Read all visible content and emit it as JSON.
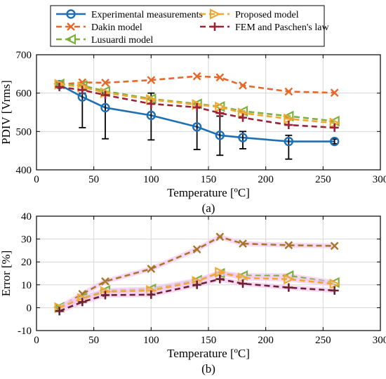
{
  "chart_data": [
    {
      "type": "line",
      "panel_label": "(a)",
      "xlabel": "Temperature [ºC]",
      "ylabel": "PDIV [Vrms]",
      "xlim": [
        0,
        300
      ],
      "ylim": [
        400,
        700
      ],
      "xticks": [
        0,
        50,
        100,
        150,
        200,
        250,
        300
      ],
      "yticks": [
        400,
        500,
        600,
        700
      ],
      "grid": true,
      "legend_position": "top, outside plot area (two columns)",
      "series": [
        {
          "name": "Experimental measurements",
          "color": "#1f6fb4",
          "marker": "circle",
          "x": [
            20,
            40,
            60,
            100,
            140,
            160,
            180,
            220,
            260
          ],
          "y": [
            622,
            590,
            562,
            542,
            512,
            490,
            484,
            474,
            474
          ],
          "error_lower": [
            622,
            510,
            481,
            478,
            453,
            438,
            455,
            428,
            468
          ],
          "error_upper": [
            628,
            600,
            600,
            600,
            570,
            540,
            500,
            490,
            480
          ]
        },
        {
          "name": "Dakin model",
          "color": "#e8672a",
          "marker": "x",
          "x": [
            20,
            40,
            60,
            100,
            140,
            160,
            180,
            220,
            260
          ],
          "y": [
            622,
            628,
            627,
            634,
            644,
            641,
            620,
            604,
            601
          ]
        },
        {
          "name": "Lusuardi model",
          "color": "#7db041",
          "marker": "triangle-left",
          "x": [
            20,
            40,
            60,
            100,
            140,
            160,
            180,
            220,
            260
          ],
          "y": [
            624,
            620,
            605,
            585,
            572,
            565,
            553,
            540,
            527
          ]
        },
        {
          "name": "Proposed model",
          "color": "#f0a830",
          "marker": "triangle-right",
          "x": [
            20,
            40,
            60,
            100,
            140,
            160,
            180,
            220,
            260
          ],
          "y": [
            623,
            616,
            601,
            583,
            570,
            564,
            548,
            533,
            522
          ]
        },
        {
          "name": "FEM and Paschen's law",
          "color": "#9c2236",
          "marker": "plus",
          "x": [
            20,
            40,
            60,
            100,
            140,
            160,
            180,
            220,
            260
          ],
          "y": [
            616,
            608,
            595,
            572,
            563,
            548,
            536,
            517,
            510
          ]
        }
      ]
    },
    {
      "type": "line",
      "panel_label": "(b)",
      "xlabel": "Temperature [ºC]",
      "ylabel": "Error [%]",
      "xlim": [
        0,
        300
      ],
      "ylim": [
        -10,
        40
      ],
      "xticks": [
        0,
        50,
        100,
        150,
        200,
        250,
        300
      ],
      "yticks": [
        -10,
        0,
        10,
        20,
        30,
        40
      ],
      "grid": true,
      "series": [
        {
          "name": "Dakin model",
          "color": "#a8782a",
          "marker": "x",
          "x": [
            20,
            40,
            60,
            100,
            140,
            160,
            180,
            220,
            260
          ],
          "y": [
            0,
            6,
            11.5,
            17,
            25.5,
            31,
            28,
            27.3,
            27
          ]
        },
        {
          "name": "Lusuardi model",
          "color": "#7db041",
          "marker": "triangle-left",
          "x": [
            20,
            40,
            60,
            100,
            140,
            160,
            180,
            220,
            260
          ],
          "y": [
            0.2,
            4.2,
            7.5,
            8.2,
            12,
            15,
            14,
            14,
            11
          ]
        },
        {
          "name": "Proposed model",
          "color": "#f0a830",
          "marker": "triangle-right",
          "x": [
            20,
            40,
            60,
            100,
            140,
            160,
            180,
            220,
            260
          ],
          "y": [
            0,
            4,
            7,
            7.5,
            11.5,
            15.5,
            13,
            12.5,
            10.3
          ]
        },
        {
          "name": "FEM and Paschen's law",
          "color": "#6b2330",
          "marker": "plus",
          "x": [
            20,
            40,
            60,
            100,
            140,
            160,
            180,
            220,
            260
          ],
          "y": [
            -1.5,
            2.5,
            5.5,
            5.7,
            10,
            12.5,
            10.5,
            8.8,
            7.5
          ]
        }
      ]
    }
  ]
}
